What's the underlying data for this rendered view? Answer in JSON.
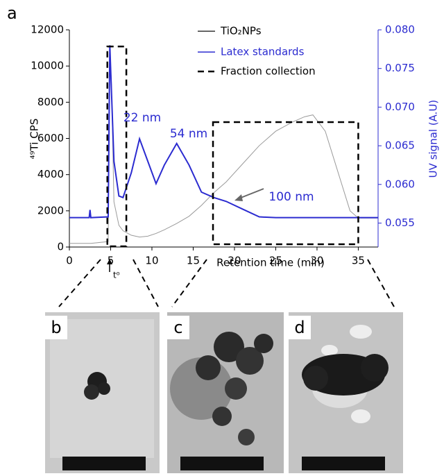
{
  "panel_labels": [
    "a",
    "b",
    "c",
    "d"
  ],
  "chart_data": {
    "type": "line",
    "xlabel": "Retention time (min)",
    "ylabel": "⁴⁹Ti CPS",
    "y2label": "UV signal (A.U)",
    "x": [
      0,
      2.4,
      2.5,
      2.6,
      4.7,
      4.9,
      5.1,
      5.4,
      6,
      6.5,
      7.5,
      8.5,
      9.5,
      10.5,
      11.5,
      13,
      14.5,
      16,
      17.5,
      19,
      21,
      23,
      25,
      27,
      28.5,
      29.5,
      31,
      32.5,
      34,
      35,
      37.4
    ],
    "series": [
      {
        "name": "TiO₂NPs",
        "color": "#9a9a9a",
        "legend_color": "#333333",
        "values": [
          200,
          200,
          200,
          200,
          300,
          11000,
          9000,
          2500,
          1200,
          900,
          650,
          550,
          600,
          750,
          950,
          1300,
          1700,
          2300,
          3000,
          3600,
          4600,
          5600,
          6400,
          6900,
          7200,
          7300,
          6400,
          4200,
          2000,
          1600,
          1600
        ]
      },
      {
        "name": "Latex standards",
        "color": "#2b2bd0",
        "axis": "y2",
        "values": [
          0.0557,
          0.0557,
          0.0567,
          0.0557,
          0.0558,
          0.078,
          0.072,
          0.063,
          0.0585,
          0.0583,
          0.0615,
          0.0659,
          0.063,
          0.0601,
          0.0625,
          0.0653,
          0.0625,
          0.059,
          0.0583,
          0.0578,
          0.0568,
          0.0558,
          0.0557,
          0.0557,
          0.0557,
          0.0557,
          0.0557,
          0.0557,
          0.0557,
          0.0557,
          0.0557
        ]
      }
    ],
    "fraction_collection": {
      "name": "Fraction collection",
      "ranges": [
        [
          4.6,
          6.9
        ],
        [
          17.4,
          35
        ]
      ]
    },
    "annotations": [
      "22 nm",
      "54 nm",
      "100 nm",
      "t⁰"
    ],
    "xlim": [
      0,
      37.4
    ],
    "xticks": [
      0,
      5,
      10,
      15,
      20,
      25,
      30,
      35
    ],
    "ylim": [
      0,
      12000
    ],
    "yticks": [
      0,
      2000,
      4000,
      6000,
      8000,
      10000,
      12000
    ],
    "y2lim": [
      0.0519,
      0.08
    ],
    "y2ticks": [
      0.055,
      {
        "value": 0.06,
        "label": "0.060"
      },
      0.065,
      {
        "value": 0.07,
        "label": "0.070"
      },
      0.075,
      {
        "value": 0.08,
        "label": "0.080"
      }
    ]
  }
}
